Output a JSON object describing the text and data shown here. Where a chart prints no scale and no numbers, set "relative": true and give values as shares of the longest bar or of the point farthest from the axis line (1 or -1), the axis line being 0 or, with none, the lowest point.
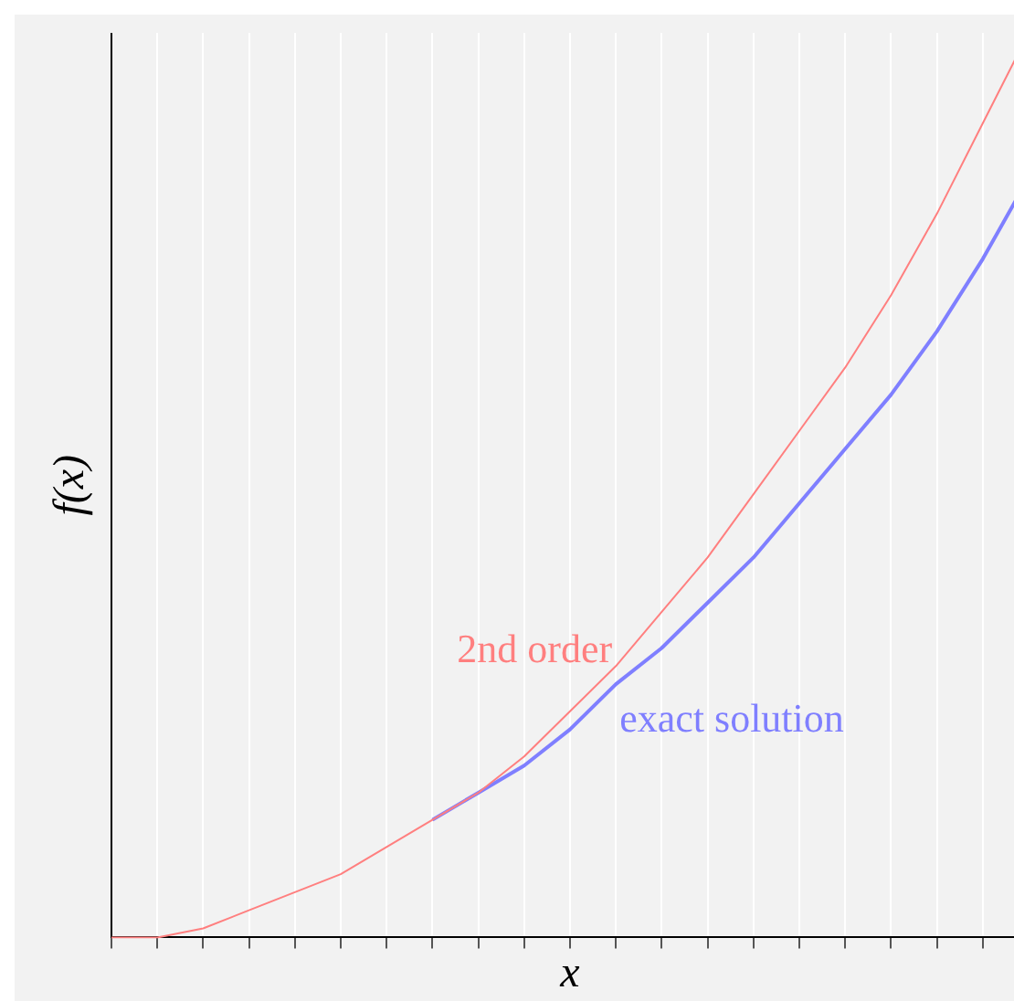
{
  "chart_data": {
    "type": "line",
    "xlabel": "x",
    "ylabel": "f(x)",
    "relative": true,
    "grid": "x",
    "tick_labels": false,
    "legend": false,
    "marker": "none",
    "line_style": "solid",
    "categories": [
      null,
      null,
      null,
      null,
      null,
      null,
      null,
      null,
      null,
      null,
      null,
      null,
      null,
      null,
      null,
      null,
      null,
      null,
      null,
      null,
      null
    ],
    "series": [
      {
        "name": "2nd order",
        "color": "#ff7f7f",
        "values": [
          0,
          0,
          0.01,
          0.03,
          0.05,
          0.07,
          0.1,
          0.13,
          0.16,
          0.2,
          0.25,
          0.3,
          0.36,
          0.42,
          0.49,
          0.56,
          0.63,
          0.71,
          0.8,
          0.9,
          1
        ]
      },
      {
        "name": "exact solution",
        "color": "#7f7fff",
        "values": [
          null,
          null,
          null,
          null,
          null,
          null,
          null,
          0.13,
          0.16,
          0.19,
          0.23,
          0.28,
          0.32,
          0.37,
          0.42,
          0.48,
          0.54,
          0.6,
          0.67,
          0.75,
          0.84
        ]
      }
    ]
  }
}
